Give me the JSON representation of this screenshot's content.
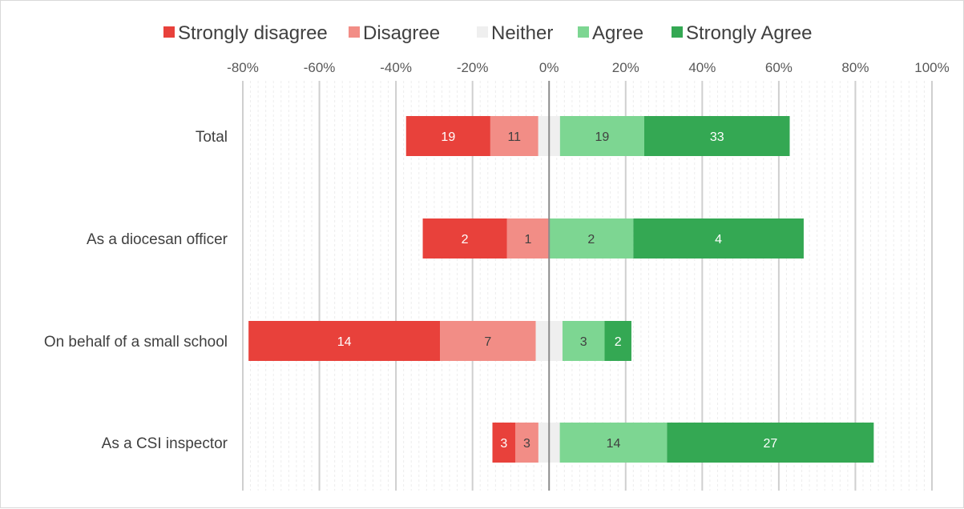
{
  "chart_data": {
    "type": "bar",
    "orientation": "horizontal",
    "stacked": "diverging",
    "title": "",
    "xlabel": "",
    "ylabel": "",
    "xlim": [
      -80,
      100
    ],
    "x_ticks": [
      "-80%",
      "-60%",
      "-40%",
      "-20%",
      "0%",
      "20%",
      "40%",
      "60%",
      "80%",
      "100%"
    ],
    "grid": true,
    "legend_position": "top",
    "categories": [
      "Total",
      "As a diocesan officer",
      "On behalf of a small school",
      "As a CSI inspector"
    ],
    "series": [
      {
        "name": "Strongly disagree",
        "color": "#e8413b",
        "text_color": "#ffffff",
        "side": "negative",
        "counts": [
          "19",
          "2",
          "14",
          "3"
        ],
        "percent": [
          22,
          22,
          50,
          6
        ]
      },
      {
        "name": "Disagree",
        "color": "#f28d86",
        "text_color": "#404040",
        "side": "negative",
        "counts": [
          "11",
          "1",
          "7",
          "3"
        ],
        "percent": [
          12.5,
          11,
          25,
          6
        ]
      },
      {
        "name": "Neither",
        "color": "#efefef",
        "text_color": "#404040",
        "side": "split",
        "counts": [
          "",
          "",
          "",
          ""
        ],
        "percent": [
          5.7,
          0,
          7,
          5.6
        ]
      },
      {
        "name": "Agree",
        "color": "#7dd692",
        "text_color": "#404040",
        "side": "positive",
        "counts": [
          "19",
          "2",
          "3",
          "14"
        ],
        "percent": [
          22,
          22,
          11,
          28
        ]
      },
      {
        "name": "Strongly Agree",
        "color": "#34a853",
        "text_color": "#ffffff",
        "side": "positive",
        "counts": [
          "33",
          "4",
          "2",
          "27"
        ],
        "percent": [
          38,
          44.5,
          7,
          54
        ]
      }
    ]
  }
}
